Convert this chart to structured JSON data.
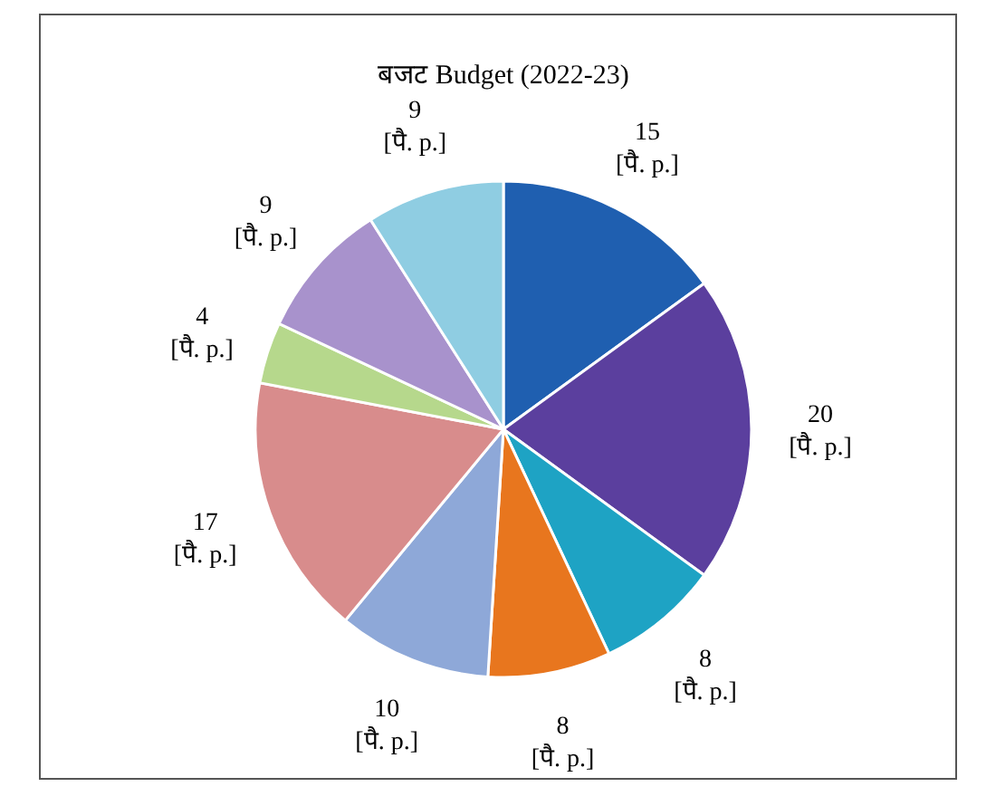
{
  "chart_data": {
    "type": "pie",
    "title": "बजट Budget (2022-23)",
    "categories": [
      null,
      null,
      null,
      null,
      null,
      null,
      null,
      null,
      null
    ],
    "values": [
      15,
      20,
      8,
      8,
      10,
      17,
      4,
      9,
      9
    ],
    "colors": [
      "#1f5fb0",
      "#5b3f9e",
      "#1ea3c4",
      "#e8761e",
      "#8ea8d8",
      "#d88c8c",
      "#b6d88c",
      "#a892cc",
      "#8fcde2"
    ],
    "value_labels": [
      "15 [पै. p.]",
      "20 [पै. p.]",
      "8 [पै. p.]",
      "8 [पै. p.]",
      "10 [पै. p.]",
      "17 [पै. p.]",
      "4 [पै. p.]",
      "9 [पै. p.]",
      "9 [पै. p.]"
    ]
  }
}
